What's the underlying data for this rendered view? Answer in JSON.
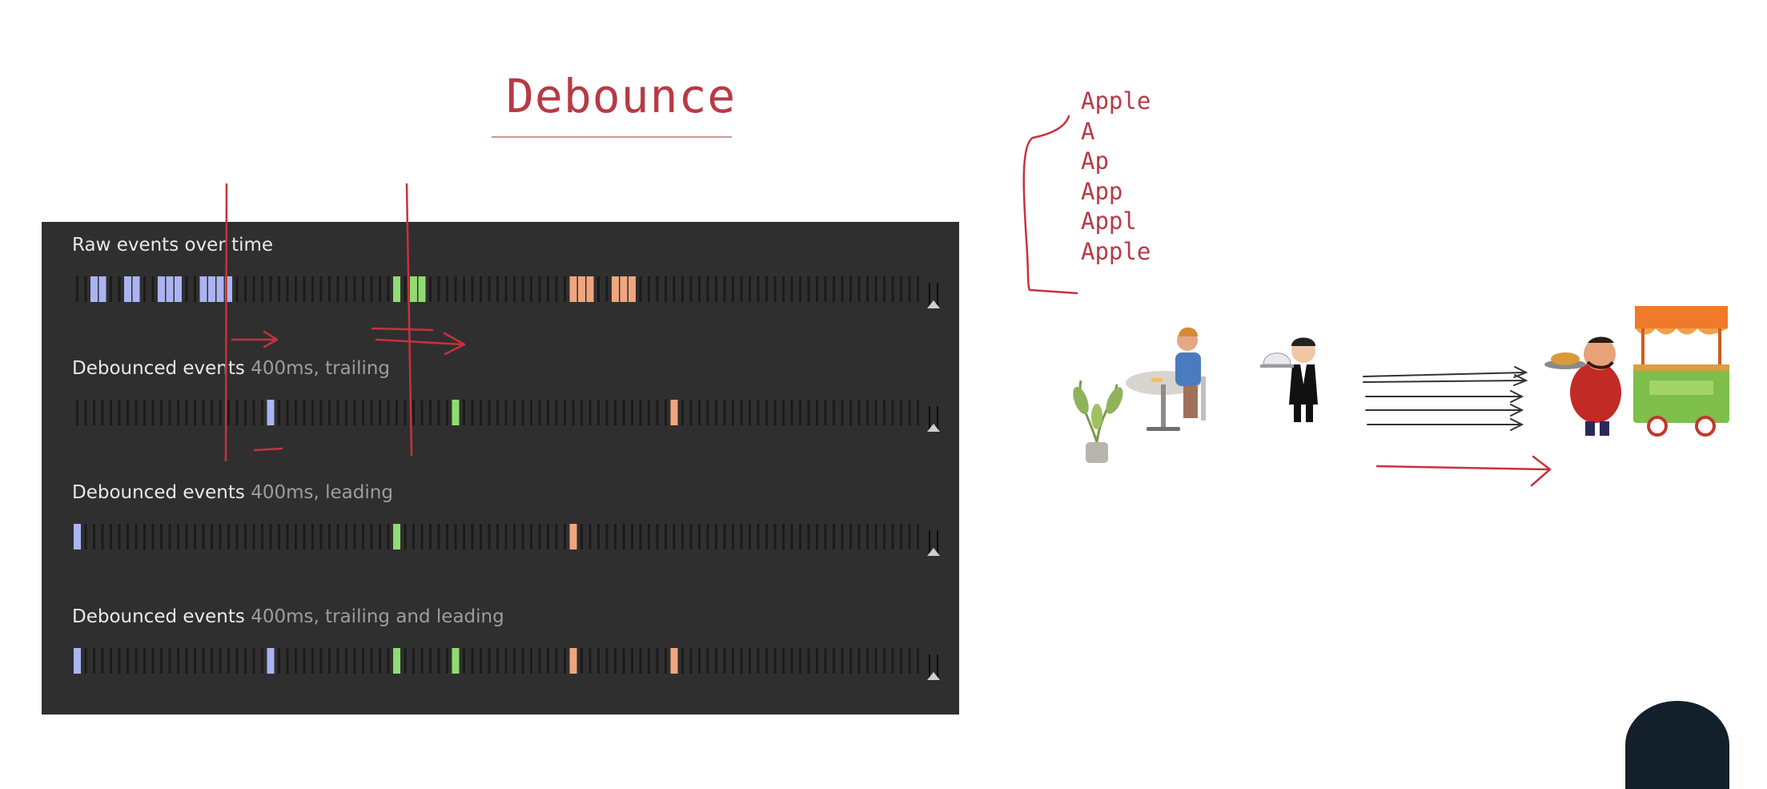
{
  "title": "Debounce",
  "words": [
    "Apple",
    "A",
    "Ap",
    "App",
    "Appl",
    "Apple"
  ],
  "colors": {
    "annotation_red": "#c8323c",
    "panel_bg": "#2f2f2f",
    "tick": "#1b1b1b",
    "event_blue": "#aab4f2",
    "event_green": "#8fdc72",
    "event_orange": "#f0a57f"
  },
  "rows": [
    {
      "label": "Raw events over time",
      "sub": ""
    },
    {
      "label": "Debounced events",
      "sub": "400ms, trailing"
    },
    {
      "label": "Debounced events",
      "sub": "400ms, leading"
    },
    {
      "label": "Debounced events",
      "sub": "400ms, trailing and leading"
    }
  ],
  "icons": [
    "plant-icon",
    "diner-at-table-icon",
    "waiter-icon",
    "chef-with-tray-icon",
    "food-stall-icon",
    "presenter-avatar"
  ]
}
